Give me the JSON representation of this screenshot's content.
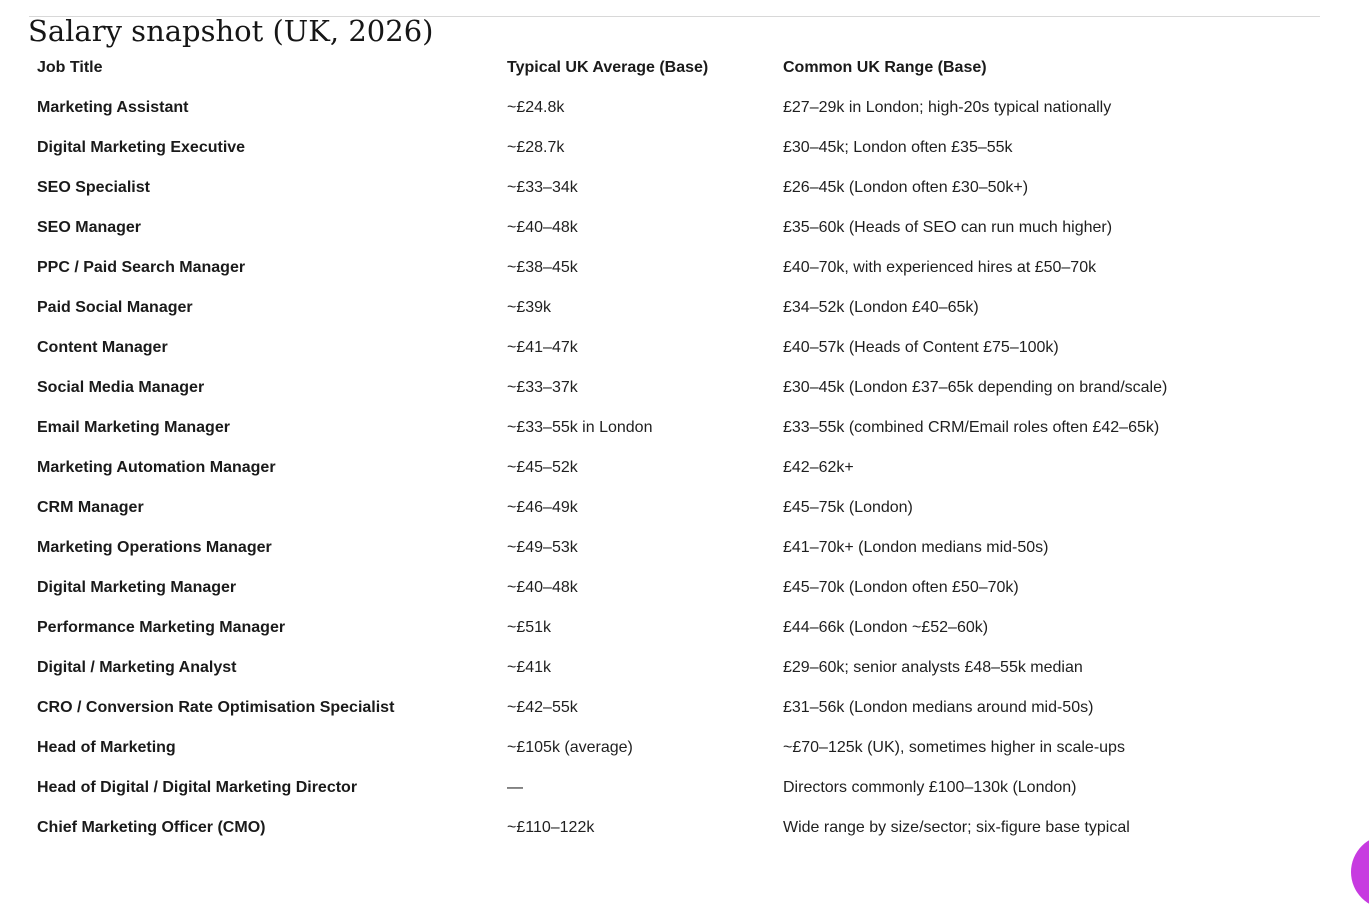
{
  "page": {
    "title": "Salary snapshot (UK, 2026)"
  },
  "table": {
    "columns": [
      "Job Title",
      "Typical UK Average (Base)",
      "Common UK Range (Base)"
    ],
    "rows": [
      {
        "job_title": "Marketing Assistant",
        "average": "~£24.8k",
        "range": "£27–29k in London; high-20s typical nationally"
      },
      {
        "job_title": "Digital Marketing Executive",
        "average": "~£28.7k",
        "range": "£30–45k; London often £35–55k"
      },
      {
        "job_title": "SEO Specialist",
        "average": "~£33–34k",
        "range": "£26–45k (London often £30–50k+)"
      },
      {
        "job_title": "SEO Manager",
        "average": "~£40–48k",
        "range": "£35–60k (Heads of SEO can run much higher)"
      },
      {
        "job_title": "PPC / Paid Search Manager",
        "average": "~£38–45k",
        "range": "£40–70k, with experienced hires at £50–70k"
      },
      {
        "job_title": "Paid Social Manager",
        "average": "~£39k",
        "range": "£34–52k (London £40–65k)"
      },
      {
        "job_title": "Content Manager",
        "average": "~£41–47k",
        "range": "£40–57k (Heads of Content £75–100k)"
      },
      {
        "job_title": "Social Media Manager",
        "average": "~£33–37k",
        "range": "£30–45k (London £37–65k depending on brand/scale)"
      },
      {
        "job_title": "Email Marketing Manager",
        "average": "~£33–55k in London",
        "range": "£33–55k (combined CRM/Email roles often £42–65k)"
      },
      {
        "job_title": "Marketing Automation Manager",
        "average": "~£45–52k",
        "range": "£42–62k+"
      },
      {
        "job_title": "CRM Manager",
        "average": "~£46–49k",
        "range": "£45–75k (London)"
      },
      {
        "job_title": "Marketing Operations Manager",
        "average": "~£49–53k",
        "range": "£41–70k+ (London medians mid-50s)"
      },
      {
        "job_title": "Digital Marketing Manager",
        "average": "~£40–48k",
        "range": "£45–70k (London often £50–70k)"
      },
      {
        "job_title": "Performance Marketing Manager",
        "average": "~£51k",
        "range": "£44–66k (London ~£52–60k)"
      },
      {
        "job_title": "Digital / Marketing Analyst",
        "average": "~£41k",
        "range": "£29–60k; senior analysts £48–55k median"
      },
      {
        "job_title": "CRO / Conversion Rate Optimisation Specialist",
        "average": "~£42–55k",
        "range": "£31–56k (London medians around mid-50s)"
      },
      {
        "job_title": "Head of Marketing",
        "average": "~£105k (average)",
        "range": "~£70–125k (UK), sometimes higher in scale-ups"
      },
      {
        "job_title": "Head of Digital / Digital Marketing Director",
        "average": "—",
        "range": "Directors commonly £100–130k (London)"
      },
      {
        "job_title": "Chief Marketing Officer (CMO)",
        "average": "~£110–122k",
        "range": "Wide range by size/sector; six-figure base typical"
      }
    ]
  },
  "fab": {
    "color": "#c73be0"
  }
}
